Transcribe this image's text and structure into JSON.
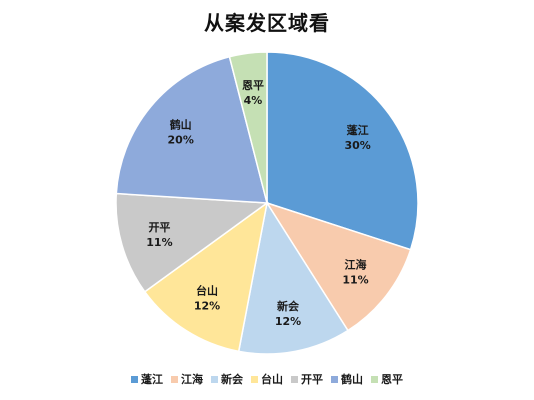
{
  "chart_data": {
    "type": "pie",
    "title": "从案发区域看",
    "categories": [
      "蓬江",
      "江海",
      "新会",
      "台山",
      "开平",
      "鹤山",
      "恩平"
    ],
    "values": [
      30,
      11,
      12,
      12,
      11,
      20,
      4
    ],
    "value_labels": [
      "30%",
      "11%",
      "12%",
      "12%",
      "11%",
      "20%",
      "4%"
    ],
    "colors": [
      "#5b9bd5",
      "#f8cbad",
      "#bdd7ee",
      "#ffe699",
      "#c9c9c9",
      "#8eaadb",
      "#c5e0b4"
    ],
    "start_angle": "12 o'clock",
    "direction": "clockwise",
    "legend_position": "bottom"
  }
}
